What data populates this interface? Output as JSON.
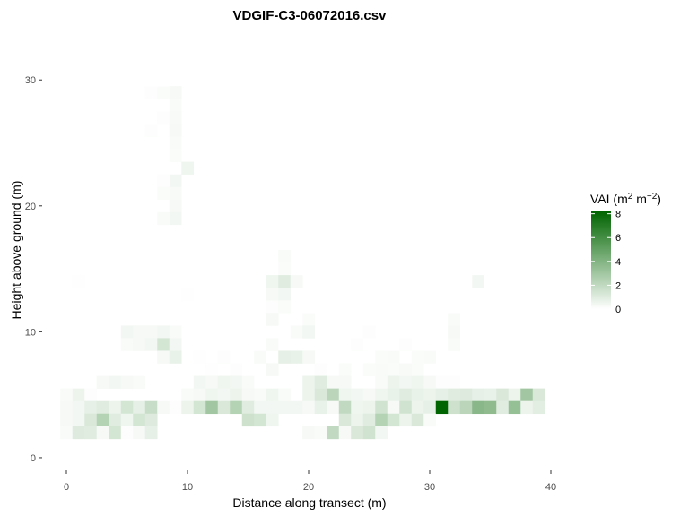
{
  "chart_data": {
    "type": "heatmap",
    "title": "VDGIF-C3-06072016.csv",
    "xlabel": "Distance along transect (m)",
    "ylabel": "Height above ground (m)",
    "xlim": [
      -2,
      42
    ],
    "ylim": [
      -1,
      34
    ],
    "x_ticks": [
      0,
      10,
      20,
      30,
      40
    ],
    "y_ticks": [
      0,
      10,
      20,
      30
    ],
    "grid": false,
    "legend": {
      "title_base": "VAI (m",
      "title_sup1": "2",
      "title_mid": " m",
      "title_sup2": "−2",
      "title_end": ")",
      "min": 0,
      "max": 8.2,
      "ticks": [
        0,
        2,
        4,
        6,
        8
      ],
      "placement": "right",
      "color_low": "#ffffff",
      "color_high": "#006400"
    },
    "cells": [
      [
        7,
        29,
        0.1
      ],
      [
        8,
        29,
        0.15
      ],
      [
        9,
        29,
        0.3
      ],
      [
        9,
        28,
        0.2
      ],
      [
        8,
        27,
        0.1
      ],
      [
        9,
        27,
        0.25
      ],
      [
        7,
        26,
        0.1
      ],
      [
        9,
        26,
        0.3
      ],
      [
        9,
        25,
        0.2
      ],
      [
        9,
        24,
        0.15
      ],
      [
        10,
        23,
        0.5
      ],
      [
        9,
        22,
        0.4
      ],
      [
        8,
        22,
        0.1
      ],
      [
        9,
        21,
        0.25
      ],
      [
        8,
        21,
        0.15
      ],
      [
        9,
        20,
        0.3
      ],
      [
        9,
        19,
        0.4
      ],
      [
        8,
        19,
        0.2
      ],
      [
        18,
        16,
        0.2
      ],
      [
        18,
        15,
        0.15
      ],
      [
        17,
        14,
        0.5
      ],
      [
        18,
        14,
        1.0
      ],
      [
        19,
        14,
        0.3
      ],
      [
        17,
        13,
        0.3
      ],
      [
        18,
        13,
        0.4
      ],
      [
        1,
        14,
        0.05
      ],
      [
        10,
        13,
        0.05
      ],
      [
        34,
        14,
        0.4
      ],
      [
        17,
        12,
        0.1
      ],
      [
        18,
        12,
        0.15
      ],
      [
        17,
        11,
        0.3
      ],
      [
        20,
        11,
        0.15
      ],
      [
        19,
        10,
        0.2
      ],
      [
        20,
        10,
        0.4
      ],
      [
        32,
        11,
        0.2
      ],
      [
        32,
        10,
        0.3
      ],
      [
        32,
        9,
        0.2
      ],
      [
        25,
        10,
        0.1
      ],
      [
        5,
        10,
        0.4
      ],
      [
        6,
        10,
        0.3
      ],
      [
        7,
        10,
        0.3
      ],
      [
        8,
        10,
        0.4
      ],
      [
        9,
        10,
        0.2
      ],
      [
        5,
        9,
        0.2
      ],
      [
        6,
        9,
        0.3
      ],
      [
        7,
        9,
        0.4
      ],
      [
        8,
        9,
        1.4
      ],
      [
        9,
        9,
        0.4
      ],
      [
        17,
        9,
        0.2
      ],
      [
        24,
        9,
        0.1
      ],
      [
        28,
        9,
        0.1
      ],
      [
        8,
        8,
        0.3
      ],
      [
        9,
        8,
        0.7
      ],
      [
        16,
        8,
        0.2
      ],
      [
        18,
        8,
        0.8
      ],
      [
        19,
        8,
        0.7
      ],
      [
        20,
        8,
        0.3
      ],
      [
        26,
        8,
        0.15
      ],
      [
        27,
        8,
        0.2
      ],
      [
        29,
        8,
        0.15
      ],
      [
        30,
        8,
        0.2
      ],
      [
        11,
        8,
        0.05
      ],
      [
        13,
        8,
        0.1
      ],
      [
        17,
        7,
        0.3
      ],
      [
        21,
        7,
        0.1
      ],
      [
        23,
        7,
        0.15
      ],
      [
        25,
        7,
        0.15
      ],
      [
        26,
        7,
        0.2
      ],
      [
        27,
        7,
        0.15
      ],
      [
        28,
        7,
        0.25
      ],
      [
        29,
        7,
        0.15
      ],
      [
        12,
        7,
        0.05
      ],
      [
        14,
        7,
        0.08
      ],
      [
        3,
        6,
        0.3
      ],
      [
        4,
        6,
        0.4
      ],
      [
        5,
        6,
        0.3
      ],
      [
        6,
        6,
        0.2
      ],
      [
        11,
        6,
        0.4
      ],
      [
        12,
        6,
        0.3
      ],
      [
        13,
        6,
        0.5
      ],
      [
        14,
        6,
        0.4
      ],
      [
        15,
        6,
        0.2
      ],
      [
        20,
        6,
        0.6
      ],
      [
        21,
        6,
        1.0
      ],
      [
        22,
        6,
        0.3
      ],
      [
        23,
        6,
        0.3
      ],
      [
        26,
        6,
        0.2
      ],
      [
        27,
        6,
        0.6
      ],
      [
        28,
        6,
        0.4
      ],
      [
        29,
        6,
        0.5
      ],
      [
        30,
        6,
        0.3
      ],
      [
        31,
        6,
        0.1
      ],
      [
        32,
        6,
        0.1
      ],
      [
        0,
        5,
        0.2
      ],
      [
        1,
        5,
        0.6
      ],
      [
        2,
        5,
        0.1
      ],
      [
        10,
        5,
        0.2
      ],
      [
        11,
        5,
        0.3
      ],
      [
        12,
        5,
        0.5
      ],
      [
        13,
        5,
        0.4
      ],
      [
        14,
        5,
        0.6
      ],
      [
        15,
        5,
        0.3
      ],
      [
        16,
        5,
        0.2
      ],
      [
        17,
        5,
        0.5
      ],
      [
        18,
        5,
        0.2
      ],
      [
        20,
        5,
        0.6
      ],
      [
        21,
        5,
        1.2
      ],
      [
        22,
        5,
        2.2
      ],
      [
        23,
        5,
        0.5
      ],
      [
        24,
        5,
        0.4
      ],
      [
        25,
        5,
        0.3
      ],
      [
        26,
        5,
        0.5
      ],
      [
        27,
        5,
        0.7
      ],
      [
        28,
        5,
        1.0
      ],
      [
        29,
        5,
        0.7
      ],
      [
        30,
        5,
        0.6
      ],
      [
        31,
        5,
        0.8
      ],
      [
        32,
        5,
        1.0
      ],
      [
        33,
        5,
        1.1
      ],
      [
        34,
        5,
        0.8
      ],
      [
        35,
        5,
        0.7
      ],
      [
        36,
        5,
        1.2
      ],
      [
        37,
        5,
        0.6
      ],
      [
        38,
        5,
        3.0
      ],
      [
        39,
        5,
        1.2
      ],
      [
        0,
        4,
        0.3
      ],
      [
        1,
        4,
        0.4
      ],
      [
        2,
        4,
        0.8
      ],
      [
        3,
        4,
        1.0
      ],
      [
        4,
        4,
        0.6
      ],
      [
        5,
        4,
        1.4
      ],
      [
        6,
        4,
        0.8
      ],
      [
        7,
        4,
        1.8
      ],
      [
        8,
        4,
        0.3
      ],
      [
        9,
        4,
        0.1
      ],
      [
        10,
        4,
        0.6
      ],
      [
        11,
        4,
        1.4
      ],
      [
        12,
        4,
        3.0
      ],
      [
        13,
        4,
        1.2
      ],
      [
        14,
        4,
        2.4
      ],
      [
        15,
        4,
        1.0
      ],
      [
        16,
        4,
        0.4
      ],
      [
        17,
        4,
        0.4
      ],
      [
        18,
        4,
        0.4
      ],
      [
        19,
        4,
        0.4
      ],
      [
        20,
        4,
        0.3
      ],
      [
        21,
        4,
        0.7
      ],
      [
        22,
        4,
        0.3
      ],
      [
        23,
        4,
        2.0
      ],
      [
        24,
        4,
        0.5
      ],
      [
        25,
        4,
        0.6
      ],
      [
        26,
        4,
        1.5
      ],
      [
        27,
        4,
        0.3
      ],
      [
        28,
        4,
        1.5
      ],
      [
        29,
        4,
        0.6
      ],
      [
        30,
        4,
        0.8
      ],
      [
        31,
        4,
        8.2
      ],
      [
        32,
        4,
        1.6
      ],
      [
        33,
        4,
        2.2
      ],
      [
        34,
        4,
        3.8
      ],
      [
        35,
        4,
        3.6
      ],
      [
        36,
        4,
        1.0
      ],
      [
        37,
        4,
        3.4
      ],
      [
        38,
        4,
        0.6
      ],
      [
        39,
        4,
        0.9
      ],
      [
        0,
        3,
        0.3
      ],
      [
        1,
        3,
        0.4
      ],
      [
        2,
        3,
        1.2
      ],
      [
        3,
        3,
        2.4
      ],
      [
        4,
        3,
        1.0
      ],
      [
        5,
        3,
        0.5
      ],
      [
        6,
        3,
        1.4
      ],
      [
        7,
        3,
        1.1
      ],
      [
        15,
        3,
        1.6
      ],
      [
        16,
        3,
        1.4
      ],
      [
        17,
        3,
        0.5
      ],
      [
        23,
        3,
        1.2
      ],
      [
        24,
        3,
        0.6
      ],
      [
        25,
        3,
        1.0
      ],
      [
        26,
        3,
        2.4
      ],
      [
        27,
        3,
        1.4
      ],
      [
        28,
        3,
        0.6
      ],
      [
        29,
        3,
        1.2
      ],
      [
        30,
        3,
        0.2
      ],
      [
        0,
        2,
        0.2
      ],
      [
        1,
        2,
        1.1
      ],
      [
        2,
        2,
        1.0
      ],
      [
        3,
        2,
        0.3
      ],
      [
        4,
        2,
        1.4
      ],
      [
        5,
        2,
        0.1
      ],
      [
        6,
        2,
        0.3
      ],
      [
        7,
        2,
        0.8
      ],
      [
        20,
        2,
        0.3
      ],
      [
        21,
        2,
        0.2
      ],
      [
        22,
        2,
        2.0
      ],
      [
        23,
        2,
        0.3
      ],
      [
        24,
        2,
        1.2
      ],
      [
        25,
        2,
        1.5
      ],
      [
        26,
        2,
        0.4
      ]
    ]
  }
}
